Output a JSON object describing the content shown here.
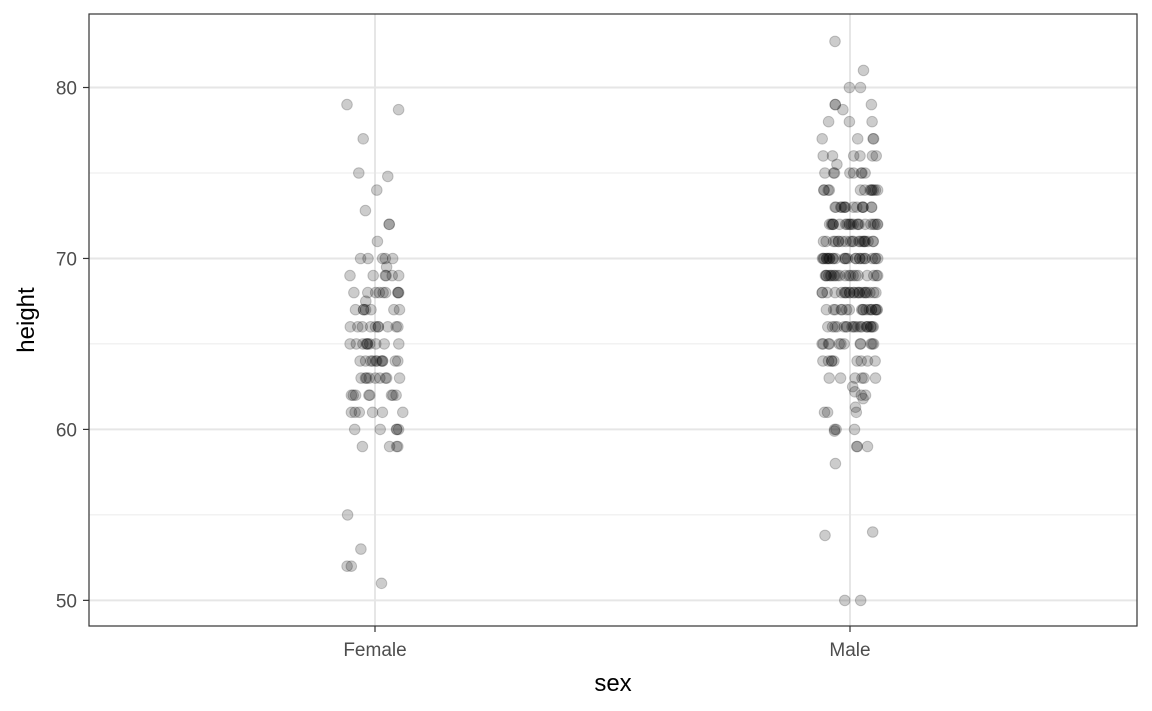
{
  "chart_data": {
    "type": "scatter",
    "xlabel": "sex",
    "ylabel": "height",
    "categories": [
      "Female",
      "Male"
    ],
    "ylim": [
      48.5,
      84.3
    ],
    "yticks": [
      50,
      60,
      70,
      80
    ],
    "yminor": [
      55,
      65,
      75
    ],
    "grid": true,
    "legend": "none",
    "point_color": "#000000",
    "point_opacity": 0.2,
    "series": [
      {
        "category": "Female",
        "values": [
          79,
          78.7,
          77,
          75,
          74.8,
          74,
          72.8,
          72,
          72,
          71,
          70,
          70,
          70,
          70,
          70,
          69.5,
          69,
          69,
          69,
          69,
          69,
          69,
          68,
          68,
          68,
          68,
          68,
          68,
          68,
          68,
          68,
          67.5,
          67,
          67,
          67,
          67,
          67,
          67,
          67,
          66,
          66,
          66,
          66,
          66,
          66,
          66,
          66,
          66,
          66,
          65,
          65,
          65,
          65,
          65,
          65,
          65,
          65,
          65,
          65,
          64,
          64,
          64,
          64,
          64,
          64,
          64,
          64,
          64,
          64,
          64,
          63,
          63,
          63,
          63,
          63,
          63,
          63,
          63,
          63,
          62,
          62,
          62,
          62,
          62,
          62,
          62,
          62,
          61,
          61,
          61,
          61,
          61,
          61,
          60,
          60,
          60,
          60,
          60,
          59,
          59,
          59,
          59,
          55,
          53,
          52,
          52,
          51
        ]
      },
      {
        "category": "Male",
        "values": [
          82.7,
          81,
          80,
          80,
          79,
          79,
          79,
          78.7,
          78,
          78,
          78,
          77,
          77,
          77,
          77,
          76,
          76,
          76,
          76,
          76,
          76,
          75.5,
          75,
          75,
          75,
          75,
          75,
          75,
          75,
          75,
          74,
          74,
          74,
          74,
          74,
          74,
          74,
          74,
          74,
          74,
          74,
          74,
          73,
          73,
          73,
          73,
          73,
          73,
          73,
          73,
          73,
          73,
          73,
          73,
          73,
          73,
          72,
          72,
          72,
          72,
          72,
          72,
          72,
          72,
          72,
          72,
          72,
          72,
          72,
          72,
          72,
          72,
          72,
          72,
          72,
          72,
          72,
          71,
          71,
          71,
          71,
          71,
          71,
          71,
          71,
          71,
          71,
          71,
          71,
          71,
          71,
          71,
          71,
          71,
          71,
          71,
          71,
          70,
          70,
          70,
          70,
          70,
          70,
          70,
          70,
          70,
          70,
          70,
          70,
          70,
          70,
          70,
          70,
          70,
          70,
          70,
          70,
          70,
          70,
          70,
          70,
          70,
          70,
          69,
          69,
          69,
          69,
          69,
          69,
          69,
          69,
          69,
          69,
          69,
          69,
          69,
          69,
          69,
          69,
          69,
          69,
          69,
          69,
          68,
          68,
          68,
          68,
          68,
          68,
          68,
          68,
          68,
          68,
          68,
          68,
          68,
          68,
          68,
          68,
          68,
          68,
          68,
          68,
          68,
          68,
          67,
          67,
          67,
          67,
          67,
          67,
          67,
          67,
          67,
          67,
          67,
          67,
          67,
          67,
          67,
          67,
          67,
          67,
          66,
          66,
          66,
          66,
          66,
          66,
          66,
          66,
          66,
          66,
          66,
          66,
          66,
          66,
          66,
          66,
          66,
          66,
          66,
          66,
          65,
          65,
          65,
          65,
          65,
          65,
          65,
          65,
          65,
          65,
          65,
          65,
          64,
          64,
          64,
          64,
          64,
          64,
          64,
          64,
          64,
          63,
          63,
          63,
          63,
          63,
          63,
          62.5,
          62.2,
          62,
          62,
          61.8,
          61.3,
          61,
          61,
          61,
          60,
          60,
          60,
          59.9,
          59,
          59,
          59,
          58,
          54,
          53.8,
          50,
          50
        ]
      }
    ]
  }
}
